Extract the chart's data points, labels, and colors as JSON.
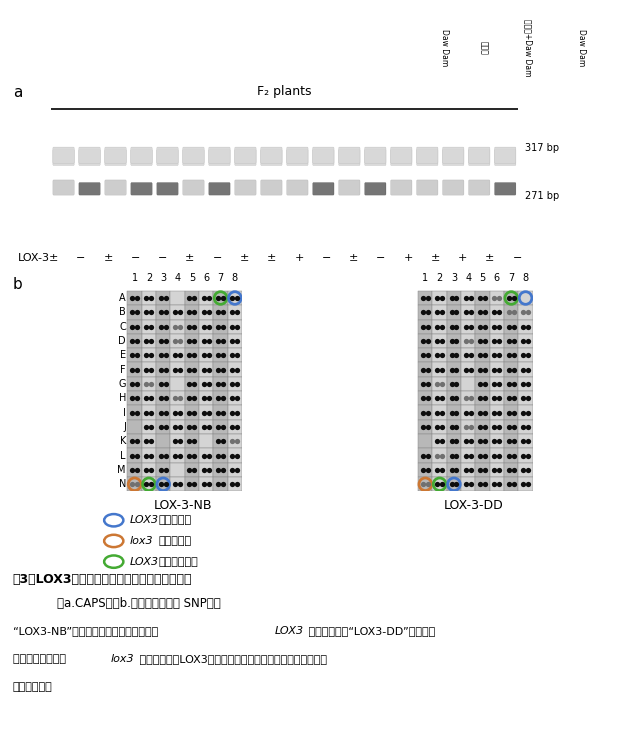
{
  "panel_a_label": "a",
  "panel_b_label": "b",
  "f2_label": "F₂ plants",
  "lox3_label": "LOX-3",
  "lox3_signs": [
    "±",
    "−",
    "±",
    "−",
    "−",
    "±",
    "−",
    "±",
    "±",
    "+",
    "−",
    "±",
    "−",
    "+",
    "±",
    "+",
    "±",
    "−"
  ],
  "bp_317": "317 bp",
  "bp_271": "271 bp",
  "row_labels": [
    "A",
    "B",
    "C",
    "D",
    "E",
    "F",
    "G",
    "H",
    "I",
    "J",
    "K",
    "L",
    "M",
    "N"
  ],
  "col_labels": [
    "1",
    "2",
    "3",
    "4",
    "5",
    "6",
    "7",
    "8"
  ],
  "nb_label": "LOX-3-NB",
  "dd_label": "LOX-3-DD",
  "legend_blue_italic": "LOX3",
  "legend_blue_rest": "遣伝子ホモ",
  "legend_orange_italic": "lox3",
  "legend_orange_rest": "遣伝子ホモ",
  "legend_green_italic": "LOX3",
  "legend_green_rest": "遣伝子ヘテロ",
  "top_label_1": "Daw Dam",
  "top_label_2": "日本晴+Daw Dam",
  "top_label_3": "日本晴",
  "top_label_4": "Daw Dam",
  "bg_color": "#ffffff",
  "gel_bg": "#0a0a0a",
  "circle_blue": "#4477cc",
  "circle_orange": "#cc7733",
  "circle_green": "#44aa33",
  "title_line1": "図3　LOX3が欠けているイネの簡易な選抜方法",
  "title_line2": "（a.CAPS法　b.ドットブロット SNP法）",
  "cap_pre": "“LOX3-NB”のみで検出されるイネが正常 ",
  "cap_lox3_italic": "LOX3",
  "cap_mid": " 遣伝子ホモ、“LOX3-DD”のみで検",
  "cap2_pre": "　出されるイネが ",
  "cap2_lox3_italic": "lox3",
  "cap2_mid": " 遣伝子ホモ（LOX3欠失型）、そして双方で検出されるイネ",
  "cap3": "　がヘテロ型"
}
